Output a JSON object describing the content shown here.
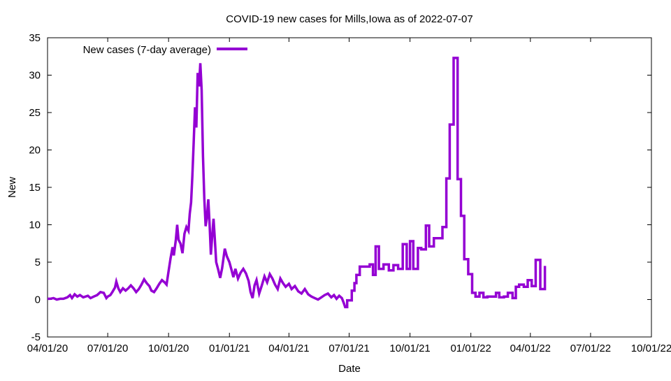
{
  "chart_data": {
    "type": "line",
    "title": "COVID-19 new cases for Mills,Iowa as of 2022-07-07",
    "xlabel": "Date",
    "ylabel": "New",
    "xlim": [
      "2020-04-01",
      "2022-10-01"
    ],
    "ylim": [
      -5,
      35
    ],
    "yticks": [
      -5,
      0,
      5,
      10,
      15,
      20,
      25,
      30,
      35
    ],
    "xticks": [
      {
        "date": "2020-04-01",
        "label": "04/01/20"
      },
      {
        "date": "2020-07-01",
        "label": "07/01/20"
      },
      {
        "date": "2020-10-01",
        "label": "10/01/20"
      },
      {
        "date": "2021-01-01",
        "label": "01/01/21"
      },
      {
        "date": "2021-04-01",
        "label": "04/01/21"
      },
      {
        "date": "2021-07-01",
        "label": "07/01/21"
      },
      {
        "date": "2021-10-01",
        "label": "10/01/21"
      },
      {
        "date": "2022-01-01",
        "label": "01/01/22"
      },
      {
        "date": "2022-04-01",
        "label": "04/01/22"
      },
      {
        "date": "2022-07-01",
        "label": "07/01/22"
      },
      {
        "date": "2022-10-01",
        "label": "10/01/22"
      }
    ],
    "grid": false,
    "legend": "top-left",
    "series": [
      {
        "name": "New cases (7-day average)",
        "color": "#9400d3",
        "points": [
          [
            "2020-04-01",
            0.1
          ],
          [
            "2020-04-05",
            0.1
          ],
          [
            "2020-04-10",
            0.2
          ],
          [
            "2020-04-15",
            0.0
          ],
          [
            "2020-04-20",
            0.1
          ],
          [
            "2020-04-25",
            0.1
          ],
          [
            "2020-05-01",
            0.3
          ],
          [
            "2020-05-05",
            0.6
          ],
          [
            "2020-05-08",
            0.2
          ],
          [
            "2020-05-12",
            0.7
          ],
          [
            "2020-05-16",
            0.4
          ],
          [
            "2020-05-20",
            0.6
          ],
          [
            "2020-05-25",
            0.3
          ],
          [
            "2020-06-01",
            0.5
          ],
          [
            "2020-06-05",
            0.2
          ],
          [
            "2020-06-10",
            0.4
          ],
          [
            "2020-06-15",
            0.6
          ],
          [
            "2020-06-20",
            1.0
          ],
          [
            "2020-06-25",
            0.9
          ],
          [
            "2020-06-29",
            0.2
          ],
          [
            "2020-07-01",
            0.4
          ],
          [
            "2020-07-05",
            0.6
          ],
          [
            "2020-07-08",
            1.0
          ],
          [
            "2020-07-12",
            1.6
          ],
          [
            "2020-07-14",
            2.4
          ],
          [
            "2020-07-17",
            1.5
          ],
          [
            "2020-07-20",
            1.0
          ],
          [
            "2020-07-24",
            1.5
          ],
          [
            "2020-07-28",
            1.2
          ],
          [
            "2020-08-01",
            1.5
          ],
          [
            "2020-08-05",
            1.9
          ],
          [
            "2020-08-09",
            1.5
          ],
          [
            "2020-08-13",
            1.0
          ],
          [
            "2020-08-17",
            1.4
          ],
          [
            "2020-08-21",
            2.0
          ],
          [
            "2020-08-25",
            2.7
          ],
          [
            "2020-08-29",
            2.2
          ],
          [
            "2020-09-02",
            1.8
          ],
          [
            "2020-09-05",
            1.2
          ],
          [
            "2020-09-09",
            1.0
          ],
          [
            "2020-09-13",
            1.5
          ],
          [
            "2020-09-17",
            2.1
          ],
          [
            "2020-09-21",
            2.6
          ],
          [
            "2020-09-25",
            2.3
          ],
          [
            "2020-09-28",
            2.0
          ],
          [
            "2020-10-01",
            3.8
          ],
          [
            "2020-10-04",
            5.5
          ],
          [
            "2020-10-07",
            7.0
          ],
          [
            "2020-10-09",
            5.9
          ],
          [
            "2020-10-12",
            8.0
          ],
          [
            "2020-10-14",
            10.0
          ],
          [
            "2020-10-16",
            8.0
          ],
          [
            "2020-10-19",
            7.5
          ],
          [
            "2020-10-22",
            6.2
          ],
          [
            "2020-10-25",
            8.8
          ],
          [
            "2020-10-28",
            9.7
          ],
          [
            "2020-10-31",
            9.2
          ],
          [
            "2020-11-02",
            11.5
          ],
          [
            "2020-11-04",
            13.0
          ],
          [
            "2020-11-06",
            16.5
          ],
          [
            "2020-11-08",
            21.0
          ],
          [
            "2020-11-10",
            25.7
          ],
          [
            "2020-11-12",
            23.0
          ],
          [
            "2020-11-14",
            30.3
          ],
          [
            "2020-11-16",
            28.5
          ],
          [
            "2020-11-18",
            31.6
          ],
          [
            "2020-11-20",
            28.0
          ],
          [
            "2020-11-22",
            19.2
          ],
          [
            "2020-11-24",
            13.5
          ],
          [
            "2020-11-26",
            9.8
          ],
          [
            "2020-11-28",
            11.0
          ],
          [
            "2020-11-30",
            13.4
          ],
          [
            "2020-12-02",
            10.0
          ],
          [
            "2020-12-04",
            6.0
          ],
          [
            "2020-12-06",
            8.5
          ],
          [
            "2020-12-08",
            10.8
          ],
          [
            "2020-12-10",
            8.0
          ],
          [
            "2020-12-12",
            5.0
          ],
          [
            "2020-12-15",
            4.0
          ],
          [
            "2020-12-18",
            2.9
          ],
          [
            "2020-12-21",
            4.2
          ],
          [
            "2020-12-25",
            6.8
          ],
          [
            "2020-12-28",
            5.8
          ],
          [
            "2021-01-01",
            5.0
          ],
          [
            "2021-01-04",
            4.0
          ],
          [
            "2021-01-07",
            3.0
          ],
          [
            "2021-01-10",
            4.1
          ],
          [
            "2021-01-14",
            2.8
          ],
          [
            "2021-01-18",
            3.6
          ],
          [
            "2021-01-22",
            4.1
          ],
          [
            "2021-01-26",
            3.5
          ],
          [
            "2021-01-30",
            2.5
          ],
          [
            "2021-02-02",
            1.0
          ],
          [
            "2021-02-05",
            0.2
          ],
          [
            "2021-02-08",
            1.9
          ],
          [
            "2021-02-11",
            2.6
          ],
          [
            "2021-02-15",
            0.8
          ],
          [
            "2021-02-19",
            1.9
          ],
          [
            "2021-02-23",
            3.1
          ],
          [
            "2021-02-27",
            2.3
          ],
          [
            "2021-03-03",
            3.4
          ],
          [
            "2021-03-07",
            2.8
          ],
          [
            "2021-03-11",
            2.0
          ],
          [
            "2021-03-15",
            1.4
          ],
          [
            "2021-03-19",
            2.8
          ],
          [
            "2021-03-23",
            2.2
          ],
          [
            "2021-03-27",
            1.7
          ],
          [
            "2021-04-01",
            2.1
          ],
          [
            "2021-04-05",
            1.4
          ],
          [
            "2021-04-10",
            1.8
          ],
          [
            "2021-04-15",
            1.1
          ],
          [
            "2021-04-20",
            0.8
          ],
          [
            "2021-04-25",
            1.4
          ],
          [
            "2021-04-30",
            0.7
          ],
          [
            "2021-05-05",
            0.4
          ],
          [
            "2021-05-10",
            0.2
          ],
          [
            "2021-05-15",
            0.0
          ],
          [
            "2021-05-20",
            0.3
          ],
          [
            "2021-05-25",
            0.6
          ],
          [
            "2021-05-30",
            0.8
          ],
          [
            "2021-06-04",
            0.3
          ],
          [
            "2021-06-08",
            0.6
          ],
          [
            "2021-06-12",
            0.1
          ],
          [
            "2021-06-16",
            0.5
          ],
          [
            "2021-06-20",
            0.2
          ],
          [
            "2021-06-23",
            -0.5
          ],
          [
            "2021-06-25",
            -1.0
          ],
          [
            "2021-06-28",
            -1.0
          ],
          [
            "2021-06-28",
            -0.1
          ],
          [
            "2021-07-05",
            -0.1
          ],
          [
            "2021-07-05",
            1.2
          ],
          [
            "2021-07-09",
            1.2
          ],
          [
            "2021-07-09",
            2.2
          ],
          [
            "2021-07-12",
            2.2
          ],
          [
            "2021-07-12",
            3.3
          ],
          [
            "2021-07-17",
            3.3
          ],
          [
            "2021-07-17",
            4.4
          ],
          [
            "2021-07-24",
            4.4
          ],
          [
            "2021-07-24",
            4.4
          ],
          [
            "2021-08-01",
            4.4
          ],
          [
            "2021-08-01",
            4.7
          ],
          [
            "2021-08-06",
            4.7
          ],
          [
            "2021-08-06",
            3.3
          ],
          [
            "2021-08-10",
            3.3
          ],
          [
            "2021-08-10",
            7.1
          ],
          [
            "2021-08-15",
            7.1
          ],
          [
            "2021-08-15",
            4.1
          ],
          [
            "2021-08-22",
            4.1
          ],
          [
            "2021-08-22",
            4.7
          ],
          [
            "2021-08-30",
            4.7
          ],
          [
            "2021-08-30",
            3.9
          ],
          [
            "2021-09-06",
            3.9
          ],
          [
            "2021-09-06",
            4.6
          ],
          [
            "2021-09-13",
            4.6
          ],
          [
            "2021-09-13",
            4.1
          ],
          [
            "2021-09-20",
            4.1
          ],
          [
            "2021-09-20",
            7.4
          ],
          [
            "2021-09-26",
            7.4
          ],
          [
            "2021-09-26",
            4.1
          ],
          [
            "2021-10-01",
            4.1
          ],
          [
            "2021-10-01",
            7.8
          ],
          [
            "2021-10-06",
            7.8
          ],
          [
            "2021-10-06",
            4.1
          ],
          [
            "2021-10-13",
            4.1
          ],
          [
            "2021-10-13",
            6.9
          ],
          [
            "2021-10-18",
            6.9
          ],
          [
            "2021-10-18",
            6.7
          ],
          [
            "2021-10-25",
            6.7
          ],
          [
            "2021-10-25",
            9.9
          ],
          [
            "2021-10-30",
            9.9
          ],
          [
            "2021-10-30",
            7.1
          ],
          [
            "2021-11-06",
            7.1
          ],
          [
            "2021-11-06",
            8.2
          ],
          [
            "2021-11-19",
            8.2
          ],
          [
            "2021-11-19",
            9.7
          ],
          [
            "2021-11-25",
            9.7
          ],
          [
            "2021-11-25",
            16.2
          ],
          [
            "2021-11-30",
            16.2
          ],
          [
            "2021-11-30",
            23.4
          ],
          [
            "2021-12-06",
            23.4
          ],
          [
            "2021-12-06",
            32.3
          ],
          [
            "2021-12-12",
            32.3
          ],
          [
            "2021-12-12",
            16.1
          ],
          [
            "2021-12-17",
            16.1
          ],
          [
            "2021-12-17",
            11.2
          ],
          [
            "2021-12-22",
            11.2
          ],
          [
            "2021-12-22",
            5.4
          ],
          [
            "2021-12-28",
            5.4
          ],
          [
            "2021-12-28",
            3.4
          ],
          [
            "2022-01-03",
            3.4
          ],
          [
            "2022-01-03",
            0.9
          ],
          [
            "2022-01-08",
            0.9
          ],
          [
            "2022-01-08",
            0.4
          ],
          [
            "2022-01-14",
            0.4
          ],
          [
            "2022-01-14",
            0.9
          ],
          [
            "2022-01-20",
            0.9
          ],
          [
            "2022-01-20",
            0.3
          ],
          [
            "2022-01-26",
            0.3
          ],
          [
            "2022-01-26",
            0.4
          ],
          [
            "2022-02-08",
            0.4
          ],
          [
            "2022-02-08",
            0.9
          ],
          [
            "2022-02-13",
            0.9
          ],
          [
            "2022-02-13",
            0.3
          ],
          [
            "2022-02-20",
            0.3
          ],
          [
            "2022-02-20",
            0.4
          ],
          [
            "2022-02-26",
            0.4
          ],
          [
            "2022-02-26",
            0.9
          ],
          [
            "2022-03-05",
            0.9
          ],
          [
            "2022-03-05",
            0.2
          ],
          [
            "2022-03-10",
            0.2
          ],
          [
            "2022-03-10",
            1.7
          ],
          [
            "2022-03-15",
            1.7
          ],
          [
            "2022-03-15",
            2.0
          ],
          [
            "2022-03-22",
            2.0
          ],
          [
            "2022-03-22",
            1.7
          ],
          [
            "2022-03-28",
            1.7
          ],
          [
            "2022-03-28",
            2.6
          ],
          [
            "2022-04-03",
            2.6
          ],
          [
            "2022-04-03",
            1.8
          ],
          [
            "2022-04-09",
            1.8
          ],
          [
            "2022-04-09",
            5.3
          ],
          [
            "2022-04-16",
            5.3
          ],
          [
            "2022-04-16",
            1.4
          ],
          [
            "2022-04-23",
            1.4
          ],
          [
            "2022-04-23",
            4.5
          ]
        ]
      }
    ]
  }
}
